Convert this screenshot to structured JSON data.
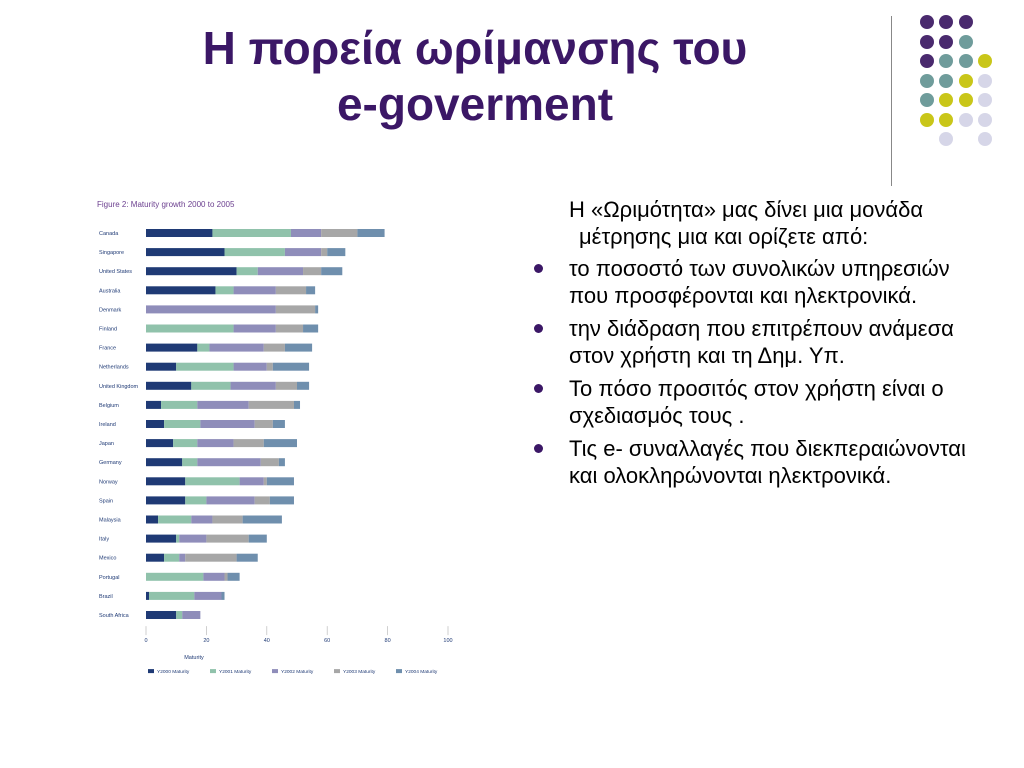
{
  "slide": {
    "title_line1": "Η  πορεία ωρίμανσης του",
    "title_line2": "e-goverment"
  },
  "decor": {
    "dot_colors": {
      "purple": "#4a2a6e",
      "teal": "#6f9c9b",
      "yellow": "#c9c619",
      "lavender": "#d6d6e8"
    },
    "dot_rows": [
      [
        "",
        "purple",
        "purple",
        "purple",
        "",
        ""
      ],
      [
        "",
        "purple",
        "purple",
        "teal",
        "",
        ""
      ],
      [
        "",
        "purple",
        "teal",
        "teal",
        "yellow",
        ""
      ],
      [
        "",
        "teal",
        "teal",
        "yellow",
        "lavender",
        ""
      ],
      [
        "",
        "teal",
        "yellow",
        "yellow",
        "lavender",
        ""
      ],
      [
        "",
        "yellow",
        "yellow",
        "lavender",
        "lavender",
        ""
      ],
      [
        "",
        "",
        "lavender",
        "",
        "lavender",
        ""
      ]
    ]
  },
  "body": {
    "intro": "Η «Ωριμότητα» μας δίνει μια μονάδα μέτρησης μια και ορίζετε από:",
    "bullets": [
      "το ποσοστό των συνολικών υπηρεσιών που προσφέρονται και ηλεκτρονικά.",
      " την διάδραση που επιτρέπουν ανάμεσα στον  χρήστη και τη Δημ. Υπ.",
      "Το πόσο προσιτός στον χρήστη είναι ο σχεδιασμός τους  .",
      "Τις e- συναλλαγές  που διεκπεραιώνονται και ολοκληρώνονται ηλεκτρονικά."
    ]
  },
  "chart_data": {
    "type": "bar",
    "orientation": "horizontal",
    "stacked": true,
    "title": "Figure 2: Maturity growth 2000 to 2005",
    "xlabel": "Maturity",
    "ylabel": "",
    "xlim": [
      0,
      100
    ],
    "xticks": [
      0,
      20,
      40,
      60,
      80,
      100
    ],
    "grid": false,
    "legend_position": "bottom",
    "categories": [
      "Canada",
      "Singapore",
      "United States",
      "Australia",
      "Denmark",
      "Finland",
      "France",
      "Netherlands",
      "United Kingdom",
      "Belgium",
      "Ireland",
      "Japan",
      "Germany",
      "Norway",
      "Spain",
      "Malaysia",
      "Italy",
      "Mexico",
      "Portugal",
      "Brazil",
      "South Africa"
    ],
    "series": [
      {
        "name": "Y2000 Maturity",
        "color": "#1f3a75",
        "values": [
          22,
          26,
          30,
          23,
          0,
          0,
          17,
          10,
          15,
          5,
          6,
          9,
          12,
          13,
          13,
          4,
          10,
          6,
          0,
          1,
          10
        ]
      },
      {
        "name": "Y2001 Maturity",
        "color": "#90c2ab",
        "values": [
          26,
          20,
          7,
          6,
          0,
          29,
          4,
          19,
          13,
          12,
          12,
          8,
          5,
          18,
          7,
          11,
          1,
          5,
          19,
          15,
          2
        ]
      },
      {
        "name": "Y2002 Maturity",
        "color": "#8f8dba",
        "values": [
          10,
          12,
          15,
          14,
          43,
          14,
          18,
          11,
          15,
          17,
          18,
          12,
          21,
          8,
          16,
          7,
          9,
          2,
          7,
          9,
          6
        ]
      },
      {
        "name": "Y2003 Maturity",
        "color": "#a7a7a7",
        "values": [
          12,
          2,
          6,
          10,
          13,
          9,
          7,
          2,
          7,
          15,
          6,
          10,
          6,
          1,
          5,
          10,
          14,
          17,
          1,
          0,
          0
        ]
      },
      {
        "name": "Y2004 Maturity",
        "color": "#6f8fad",
        "values": [
          9,
          6,
          7,
          3,
          1,
          5,
          9,
          12,
          4,
          2,
          4,
          11,
          2,
          9,
          8,
          13,
          6,
          7,
          4,
          1,
          0
        ]
      }
    ]
  }
}
